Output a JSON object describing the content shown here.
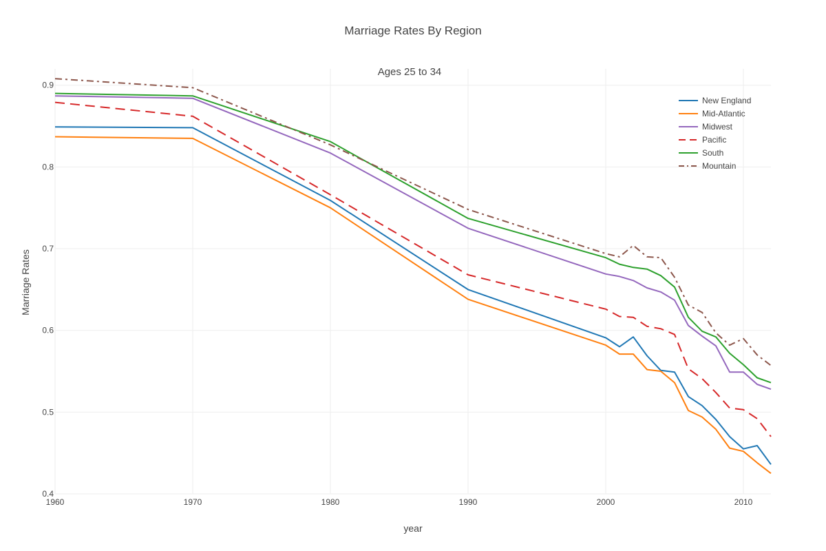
{
  "chart_data": {
    "type": "line",
    "title": "Marriage Rates By Region",
    "subtitle": "Ages 25 to 34",
    "xlabel": "year",
    "ylabel": "Marriage Rates",
    "xlim": [
      1960,
      2012
    ],
    "ylim": [
      0.4,
      0.92
    ],
    "x_ticks": [
      1960,
      1970,
      1980,
      1990,
      2000,
      2010
    ],
    "y_ticks": [
      0.4,
      0.5,
      0.6,
      0.7,
      0.8,
      0.9
    ],
    "grid": true,
    "legend_position": "top-right",
    "x": [
      1960,
      1970,
      1980,
      1990,
      2000,
      2001,
      2002,
      2003,
      2004,
      2005,
      2006,
      2007,
      2008,
      2009,
      2010,
      2011,
      2012
    ],
    "series": [
      {
        "name": "New England",
        "color": "#1f77b4",
        "dash": "solid",
        "values": [
          0.849,
          0.848,
          0.759,
          0.65,
          0.591,
          0.58,
          0.592,
          0.569,
          0.551,
          0.549,
          0.519,
          0.508,
          0.491,
          0.47,
          0.455,
          0.459,
          0.436
        ]
      },
      {
        "name": "Mid-Atlantic",
        "color": "#ff7f0e",
        "dash": "solid",
        "values": [
          0.837,
          0.835,
          0.75,
          0.638,
          0.582,
          0.571,
          0.571,
          0.552,
          0.55,
          0.536,
          0.502,
          0.494,
          0.479,
          0.456,
          0.452,
          0.438,
          0.425
        ]
      },
      {
        "name": "Midwest",
        "color": "#9467bd",
        "dash": "solid",
        "values": [
          0.887,
          0.884,
          0.817,
          0.725,
          0.669,
          0.666,
          0.661,
          0.652,
          0.647,
          0.637,
          0.606,
          0.593,
          0.581,
          0.549,
          0.549,
          0.534,
          0.528
        ]
      },
      {
        "name": "Pacific",
        "color": "#d62728",
        "dash": "dash",
        "values": [
          0.879,
          0.862,
          0.766,
          0.668,
          0.626,
          0.617,
          0.616,
          0.605,
          0.602,
          0.595,
          0.553,
          0.541,
          0.524,
          0.505,
          0.503,
          0.492,
          0.47
        ]
      },
      {
        "name": "South",
        "color": "#2ca02c",
        "dash": "solid",
        "values": [
          0.89,
          0.887,
          0.831,
          0.737,
          0.689,
          0.681,
          0.677,
          0.675,
          0.667,
          0.653,
          0.616,
          0.599,
          0.592,
          0.572,
          0.558,
          0.542,
          0.536
        ]
      },
      {
        "name": "Mountain",
        "color": "#8c564b",
        "dash": "dashdot",
        "values": [
          0.908,
          0.897,
          0.827,
          0.748,
          0.694,
          0.69,
          0.704,
          0.69,
          0.689,
          0.665,
          0.631,
          0.622,
          0.597,
          0.582,
          0.59,
          0.57,
          0.557
        ]
      }
    ]
  }
}
